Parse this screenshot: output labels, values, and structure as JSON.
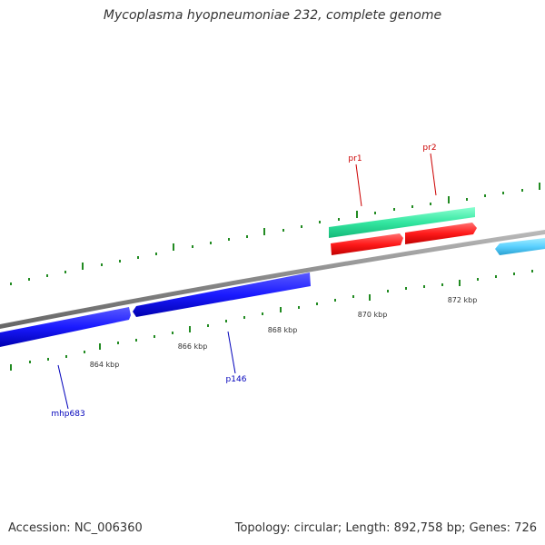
{
  "title": "Mycoplasma hyopneumoniae 232, complete genome",
  "footer": {
    "accession": "Accession: NC_006360",
    "summary": "Topology: circular; Length: 892,758 bp; Genes: 726"
  },
  "colors": {
    "backbone": "#888888",
    "tick": "#228b22",
    "forward_dark_blue": "#1a1aff",
    "forward_light_blue": "#5ad0ff",
    "teal_green": "#33e6a0",
    "red": "#ff1a1a",
    "label_red": "#cc0000",
    "label_blue": "#0000bb"
  },
  "tick_labels": [
    "864 kbp",
    "866 kbp",
    "868 kbp",
    "870 kbp",
    "872 kbp"
  ],
  "gene_labels": [
    {
      "name": "mhp683",
      "color": "#0000bb"
    },
    {
      "name": "p146",
      "color": "#0000bb"
    },
    {
      "name": "pr1",
      "color": "#cc0000"
    },
    {
      "name": "pr2",
      "color": "#cc0000"
    }
  ]
}
